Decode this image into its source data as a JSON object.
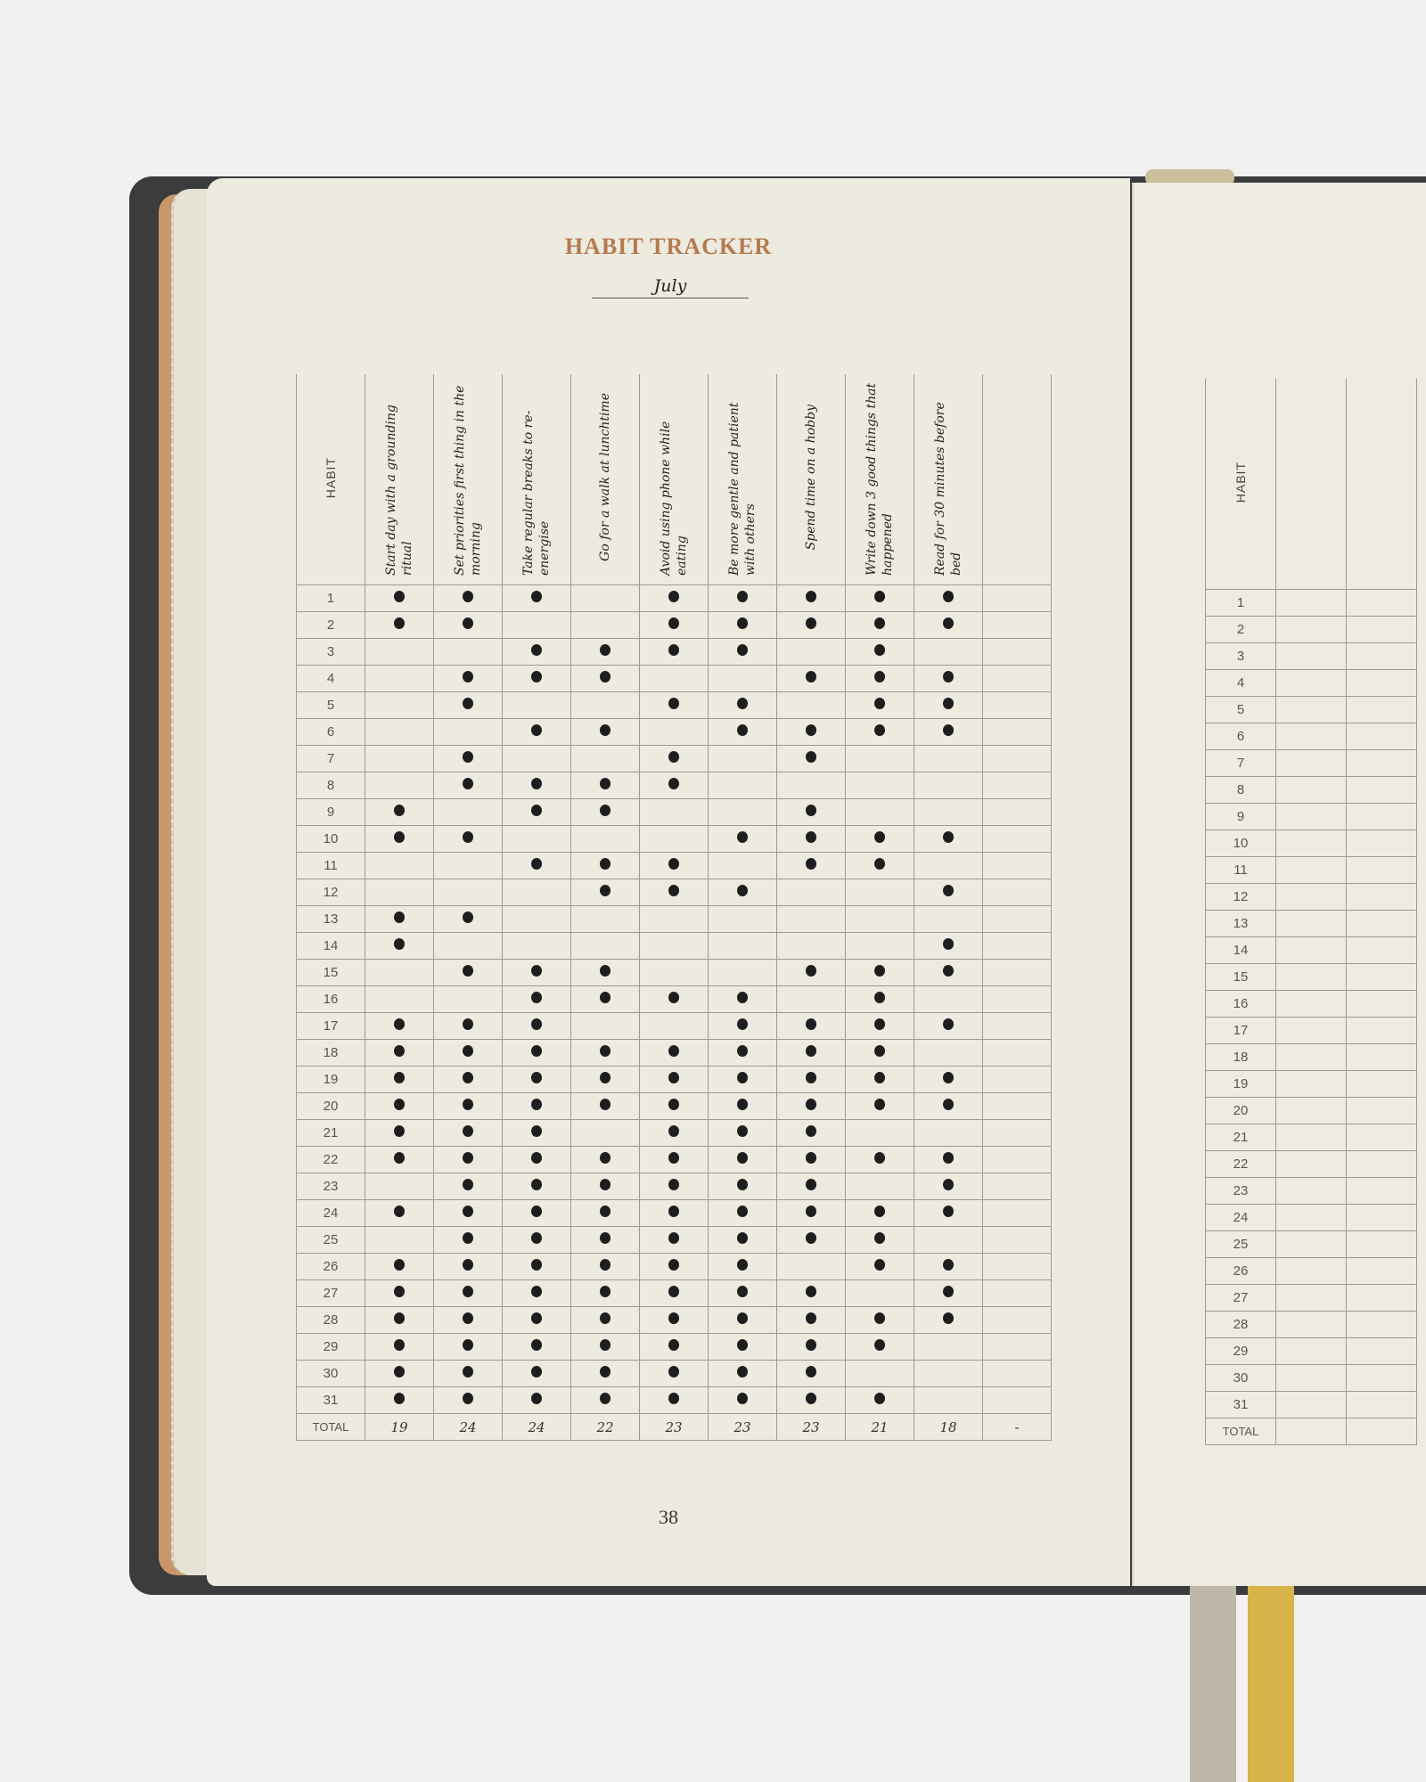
{
  "left_page": {
    "title": "HABIT TRACKER",
    "month": "July",
    "page_number": "38",
    "habit_header": "HABIT",
    "total_label": "TOTAL",
    "habits": [
      {
        "name": "Start day with a grounding ritual",
        "checked_days": [
          1,
          2,
          9,
          10,
          13,
          14,
          17,
          18,
          19,
          20,
          21,
          22,
          24,
          26,
          27,
          28,
          29,
          30,
          31
        ],
        "total": "19"
      },
      {
        "name": "Set priorities first thing in the morning",
        "checked_days": [
          1,
          2,
          4,
          5,
          7,
          8,
          10,
          13,
          15,
          17,
          18,
          19,
          20,
          21,
          22,
          23,
          24,
          25,
          26,
          27,
          28,
          29,
          30,
          31
        ],
        "total": "24"
      },
      {
        "name": "Take regular breaks to re-energise",
        "checked_days": [
          1,
          3,
          4,
          6,
          8,
          9,
          11,
          15,
          16,
          17,
          18,
          19,
          20,
          21,
          22,
          23,
          24,
          25,
          26,
          27,
          28,
          29,
          30,
          31
        ],
        "total": "24"
      },
      {
        "name": "Go for a walk at lunchtime",
        "checked_days": [
          3,
          4,
          6,
          8,
          9,
          11,
          12,
          15,
          16,
          18,
          19,
          20,
          22,
          23,
          24,
          25,
          26,
          27,
          28,
          29,
          30,
          31
        ],
        "total": "22"
      },
      {
        "name": "Avoid using phone while eating",
        "checked_days": [
          1,
          2,
          3,
          5,
          7,
          8,
          11,
          12,
          16,
          18,
          19,
          20,
          21,
          22,
          23,
          24,
          25,
          26,
          27,
          28,
          29,
          30,
          31
        ],
        "total": "23"
      },
      {
        "name": "Be more gentle and patient with others",
        "checked_days": [
          1,
          2,
          3,
          5,
          6,
          10,
          12,
          16,
          17,
          18,
          19,
          20,
          21,
          22,
          23,
          24,
          25,
          26,
          27,
          28,
          29,
          30,
          31
        ],
        "total": "23"
      },
      {
        "name": "Spend time on a hobby",
        "checked_days": [
          1,
          2,
          4,
          6,
          7,
          9,
          10,
          11,
          15,
          17,
          18,
          19,
          20,
          21,
          22,
          23,
          24,
          25,
          27,
          28,
          29,
          30,
          31
        ],
        "total": "23"
      },
      {
        "name": "Write down 3 good things that happened",
        "checked_days": [
          1,
          2,
          3,
          4,
          5,
          6,
          10,
          11,
          15,
          16,
          17,
          18,
          19,
          20,
          22,
          24,
          25,
          26,
          28,
          29,
          31
        ],
        "total": "21"
      },
      {
        "name": "Read for 30 minutes before bed",
        "checked_days": [
          1,
          2,
          4,
          5,
          6,
          10,
          12,
          14,
          15,
          17,
          19,
          20,
          22,
          23,
          24,
          26,
          27,
          28
        ],
        "total": "18"
      }
    ],
    "extra_total": "-"
  },
  "right_page": {
    "habit_header": "HABIT",
    "total_label": "TOTAL"
  },
  "days": 31,
  "colors": {
    "title": "#b57b4e",
    "page": "#edeae0",
    "cover": "#3b3c3e",
    "dot": "#1e1e1e"
  }
}
